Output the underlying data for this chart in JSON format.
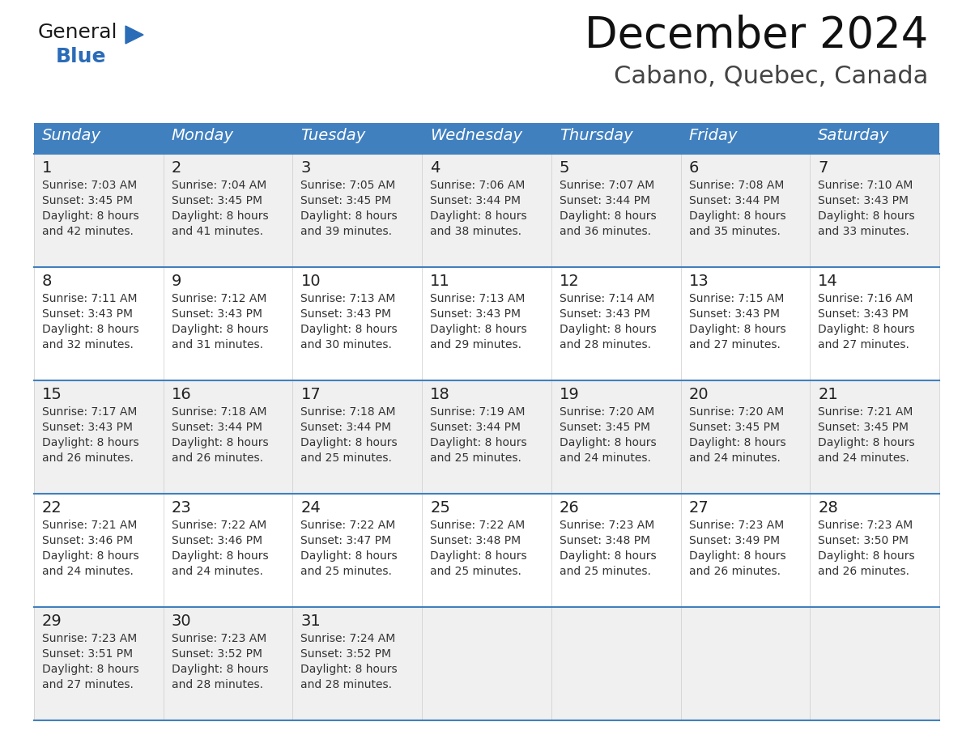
{
  "title": "December 2024",
  "subtitle": "Cabano, Quebec, Canada",
  "header_bg": "#4080BF",
  "header_text_color": "#FFFFFF",
  "day_names": [
    "Sunday",
    "Monday",
    "Tuesday",
    "Wednesday",
    "Thursday",
    "Friday",
    "Saturday"
  ],
  "title_fontsize": 38,
  "subtitle_fontsize": 22,
  "bg_color": "#FFFFFF",
  "cell_bg_odd": "#F0F0F0",
  "cell_bg_even": "#FFFFFF",
  "cell_text_color": "#333333",
  "day_num_fontsize": 14,
  "cell_fontsize": 10,
  "header_fontsize": 14,
  "logo_general_color": "#1A1A1A",
  "logo_blue_color": "#2B6CB8",
  "calendar": [
    [
      {
        "day": 1,
        "sunrise": "7:03 AM",
        "sunset": "3:45 PM",
        "dl1": "Daylight: 8 hours",
        "dl2": "and 42 minutes."
      },
      {
        "day": 2,
        "sunrise": "7:04 AM",
        "sunset": "3:45 PM",
        "dl1": "Daylight: 8 hours",
        "dl2": "and 41 minutes."
      },
      {
        "day": 3,
        "sunrise": "7:05 AM",
        "sunset": "3:45 PM",
        "dl1": "Daylight: 8 hours",
        "dl2": "and 39 minutes."
      },
      {
        "day": 4,
        "sunrise": "7:06 AM",
        "sunset": "3:44 PM",
        "dl1": "Daylight: 8 hours",
        "dl2": "and 38 minutes."
      },
      {
        "day": 5,
        "sunrise": "7:07 AM",
        "sunset": "3:44 PM",
        "dl1": "Daylight: 8 hours",
        "dl2": "and 36 minutes."
      },
      {
        "day": 6,
        "sunrise": "7:08 AM",
        "sunset": "3:44 PM",
        "dl1": "Daylight: 8 hours",
        "dl2": "and 35 minutes."
      },
      {
        "day": 7,
        "sunrise": "7:10 AM",
        "sunset": "3:43 PM",
        "dl1": "Daylight: 8 hours",
        "dl2": "and 33 minutes."
      }
    ],
    [
      {
        "day": 8,
        "sunrise": "7:11 AM",
        "sunset": "3:43 PM",
        "dl1": "Daylight: 8 hours",
        "dl2": "and 32 minutes."
      },
      {
        "day": 9,
        "sunrise": "7:12 AM",
        "sunset": "3:43 PM",
        "dl1": "Daylight: 8 hours",
        "dl2": "and 31 minutes."
      },
      {
        "day": 10,
        "sunrise": "7:13 AM",
        "sunset": "3:43 PM",
        "dl1": "Daylight: 8 hours",
        "dl2": "and 30 minutes."
      },
      {
        "day": 11,
        "sunrise": "7:13 AM",
        "sunset": "3:43 PM",
        "dl1": "Daylight: 8 hours",
        "dl2": "and 29 minutes."
      },
      {
        "day": 12,
        "sunrise": "7:14 AM",
        "sunset": "3:43 PM",
        "dl1": "Daylight: 8 hours",
        "dl2": "and 28 minutes."
      },
      {
        "day": 13,
        "sunrise": "7:15 AM",
        "sunset": "3:43 PM",
        "dl1": "Daylight: 8 hours",
        "dl2": "and 27 minutes."
      },
      {
        "day": 14,
        "sunrise": "7:16 AM",
        "sunset": "3:43 PM",
        "dl1": "Daylight: 8 hours",
        "dl2": "and 27 minutes."
      }
    ],
    [
      {
        "day": 15,
        "sunrise": "7:17 AM",
        "sunset": "3:43 PM",
        "dl1": "Daylight: 8 hours",
        "dl2": "and 26 minutes."
      },
      {
        "day": 16,
        "sunrise": "7:18 AM",
        "sunset": "3:44 PM",
        "dl1": "Daylight: 8 hours",
        "dl2": "and 26 minutes."
      },
      {
        "day": 17,
        "sunrise": "7:18 AM",
        "sunset": "3:44 PM",
        "dl1": "Daylight: 8 hours",
        "dl2": "and 25 minutes."
      },
      {
        "day": 18,
        "sunrise": "7:19 AM",
        "sunset": "3:44 PM",
        "dl1": "Daylight: 8 hours",
        "dl2": "and 25 minutes."
      },
      {
        "day": 19,
        "sunrise": "7:20 AM",
        "sunset": "3:45 PM",
        "dl1": "Daylight: 8 hours",
        "dl2": "and 24 minutes."
      },
      {
        "day": 20,
        "sunrise": "7:20 AM",
        "sunset": "3:45 PM",
        "dl1": "Daylight: 8 hours",
        "dl2": "and 24 minutes."
      },
      {
        "day": 21,
        "sunrise": "7:21 AM",
        "sunset": "3:45 PM",
        "dl1": "Daylight: 8 hours",
        "dl2": "and 24 minutes."
      }
    ],
    [
      {
        "day": 22,
        "sunrise": "7:21 AM",
        "sunset": "3:46 PM",
        "dl1": "Daylight: 8 hours",
        "dl2": "and 24 minutes."
      },
      {
        "day": 23,
        "sunrise": "7:22 AM",
        "sunset": "3:46 PM",
        "dl1": "Daylight: 8 hours",
        "dl2": "and 24 minutes."
      },
      {
        "day": 24,
        "sunrise": "7:22 AM",
        "sunset": "3:47 PM",
        "dl1": "Daylight: 8 hours",
        "dl2": "and 25 minutes."
      },
      {
        "day": 25,
        "sunrise": "7:22 AM",
        "sunset": "3:48 PM",
        "dl1": "Daylight: 8 hours",
        "dl2": "and 25 minutes."
      },
      {
        "day": 26,
        "sunrise": "7:23 AM",
        "sunset": "3:48 PM",
        "dl1": "Daylight: 8 hours",
        "dl2": "and 25 minutes."
      },
      {
        "day": 27,
        "sunrise": "7:23 AM",
        "sunset": "3:49 PM",
        "dl1": "Daylight: 8 hours",
        "dl2": "and 26 minutes."
      },
      {
        "day": 28,
        "sunrise": "7:23 AM",
        "sunset": "3:50 PM",
        "dl1": "Daylight: 8 hours",
        "dl2": "and 26 minutes."
      }
    ],
    [
      {
        "day": 29,
        "sunrise": "7:23 AM",
        "sunset": "3:51 PM",
        "dl1": "Daylight: 8 hours",
        "dl2": "and 27 minutes."
      },
      {
        "day": 30,
        "sunrise": "7:23 AM",
        "sunset": "3:52 PM",
        "dl1": "Daylight: 8 hours",
        "dl2": "and 28 minutes."
      },
      {
        "day": 31,
        "sunrise": "7:24 AM",
        "sunset": "3:52 PM",
        "dl1": "Daylight: 8 hours",
        "dl2": "and 28 minutes."
      },
      null,
      null,
      null,
      null
    ]
  ]
}
